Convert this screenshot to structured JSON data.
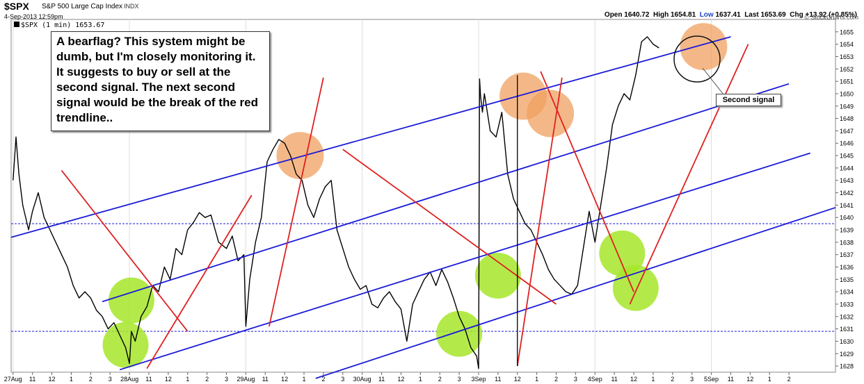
{
  "header": {
    "symbol": "$SPX",
    "name": "S&P 500 Large Cap Index",
    "exchange": "INDX",
    "timestamp": "4-Sep-2013 12:59pm",
    "brand": "© StockCharts.com",
    "open_label": "Open",
    "open": "1640.72",
    "high_label": "High",
    "high": "1654.81",
    "low_label": "Low",
    "low": "1637.41",
    "last_label": "Last",
    "last": "1653.69",
    "chg_label": "Chg",
    "chg": "+13.92 (+0.85%)"
  },
  "legend": {
    "series_label": "$SPX (1 min) 1653.67"
  },
  "annotations": {
    "note": "A bearflag? This system might be dumb, but I'm closely monitoring it. It suggests to buy or sell at the second signal. The next second signal would be the break of the red trendline..",
    "callout": "Second signal"
  },
  "colors": {
    "price": "#000000",
    "channel": "#1a1ad8",
    "trendline": "#e02020",
    "buy_zone": "#a6e62a",
    "sell_zone": "#f0a060",
    "reference": "#1a1ad8"
  },
  "chart_data": {
    "type": "line",
    "title": "",
    "ylim": [
      1627.5,
      1656
    ],
    "y_ticks": [
      1628,
      1629,
      1630,
      1631,
      1632,
      1633,
      1634,
      1635,
      1636,
      1637,
      1638,
      1639,
      1640,
      1641,
      1642,
      1643,
      1644,
      1645,
      1646,
      1647,
      1648,
      1649,
      1650,
      1651,
      1652,
      1653,
      1654,
      1655
    ],
    "x_tick_labels": [
      "27Aug",
      "11",
      "12",
      "1",
      "2",
      "3",
      "28Aug",
      "11",
      "12",
      "1",
      "2",
      "3",
      "29Aug",
      "11",
      "12",
      "1",
      "2",
      "3",
      "30Aug",
      "11",
      "12",
      "1",
      "2",
      "3",
      "3Sep",
      "11",
      "12",
      "1",
      "2",
      "3",
      "4Sep",
      "11",
      "12",
      "1",
      "2",
      "3",
      "5Sep",
      "11",
      "12",
      "1",
      "2"
    ],
    "x_range": [
      -0.1,
      42.4
    ],
    "x_units": "trading hours (tick index)",
    "reference_levels": [
      1630.8,
      1639.5
    ],
    "series": [
      {
        "x": [
          0,
          0.15,
          0.3,
          0.5,
          0.8,
          1,
          1.3,
          1.6,
          1.9,
          2.2,
          2.5,
          2.8,
          3.1,
          3.4,
          3.7,
          4,
          4.3,
          4.6,
          4.9,
          5.2,
          5.5,
          5.8,
          6.0,
          6.1,
          6.3,
          6.6,
          6.9,
          7.2,
          7.5,
          7.8,
          8.1,
          8.4,
          8.7,
          9,
          9.3,
          9.6,
          9.9,
          10.2,
          10.6,
          11,
          11.3,
          11.6,
          11.9,
          12.0,
          12.2,
          12.5,
          12.8,
          13.1,
          13.4,
          13.7,
          14,
          14.3,
          14.6,
          14.9,
          15.2,
          15.5,
          15.8,
          16.1,
          16.4,
          16.7,
          17,
          17.3,
          17.6,
          17.9,
          18.2,
          18.5,
          18.8,
          19.1,
          19.4,
          19.7,
          20,
          20.3,
          20.6,
          20.9,
          21.2,
          21.5,
          21.8,
          22.1,
          22.4,
          22.7,
          23,
          23.3,
          23.6,
          23.9,
          24.0,
          24.05,
          24.1,
          24.2,
          24.3,
          24.6,
          24.9,
          25.2,
          25.5,
          25.8,
          26.1,
          26.4,
          26.7,
          27,
          27.3,
          27.6,
          27.9,
          28.2,
          28.5,
          28.8,
          29.1,
          29.4,
          29.7,
          30,
          30.3,
          30.6,
          30.9,
          31.2,
          31.5,
          31.8,
          32.1,
          32.4,
          32.7,
          33,
          33.3
        ],
        "values": [
          1643,
          1646.5,
          1643.5,
          1641,
          1639,
          1640.5,
          1642,
          1640,
          1639,
          1638,
          1637,
          1636,
          1634.5,
          1633.5,
          1634,
          1633.5,
          1632.5,
          1632,
          1631,
          1631.5,
          1630.5,
          1629.5,
          1628.2,
          1630.8,
          1630,
          1632,
          1632.8,
          1634.5,
          1634,
          1636,
          1635,
          1637.5,
          1637,
          1639,
          1639.6,
          1640.4,
          1640,
          1640.2,
          1638,
          1637.5,
          1638.5,
          1636.5,
          1637,
          1631.2,
          1635,
          1638,
          1640,
          1644.5,
          1645.5,
          1646.3,
          1646,
          1645,
          1643.5,
          1643,
          1641,
          1640,
          1641.5,
          1642.5,
          1643,
          1639,
          1637.5,
          1636,
          1635,
          1634.2,
          1634.5,
          1633,
          1632.7,
          1633.5,
          1634,
          1633.2,
          1632.6,
          1630,
          1633,
          1634,
          1635,
          1635.6,
          1634.5,
          1635.8,
          1634.8,
          1633.5,
          1632,
          1631,
          1629.5,
          1628.8,
          1627.8,
          1651.2,
          1649.8,
          1648.5,
          1650,
          1647,
          1646.5,
          1648.5,
          1643.5,
          1641.5,
          1640.5,
          1639.5,
          1639,
          1638,
          1637,
          1635.8,
          1635,
          1634.5,
          1634,
          1633.8,
          1634.5,
          1637.5,
          1640.5,
          1638,
          1641,
          1644,
          1647.5,
          1649,
          1650,
          1649.5,
          1651.5,
          1654.2,
          1654.6,
          1654,
          1653.7
        ]
      }
    ]
  }
}
